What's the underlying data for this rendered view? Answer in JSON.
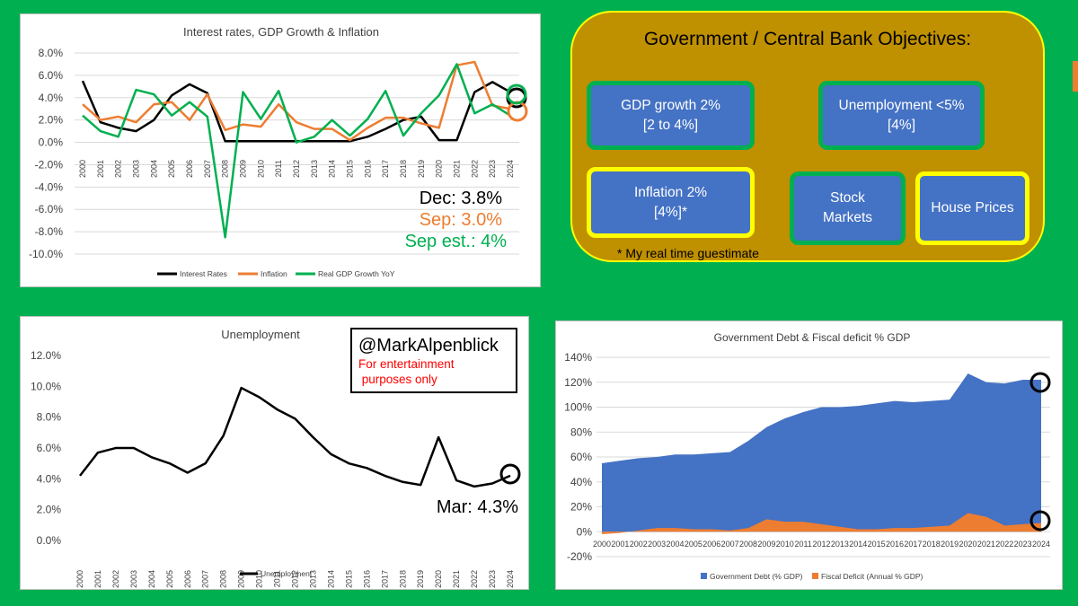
{
  "objectives": {
    "title": "Government / Central Bank Objectives:",
    "gdp": {
      "line1": "GDP  growth 2%",
      "line2": "[2 to 4%]"
    },
    "unemployment": {
      "line1": "Unemployment <5%",
      "line2": "[4%]"
    },
    "inflation": {
      "line1": "Inflation 2%",
      "line2": "[4%]*"
    },
    "stock": {
      "line1": "Stock",
      "line2": "Markets"
    },
    "house": {
      "line1": "House Prices"
    },
    "note": "* My real time guestimate"
  },
  "colors": {
    "background": "#00b050",
    "black": "#000000",
    "orange": "#ed7d31",
    "green": "#00b050",
    "blue": "#4472c4",
    "gold": "#bf9000",
    "yellow": "#ffff00",
    "red": "#ff0000"
  },
  "chart_data": [
    {
      "type": "line",
      "title": "Interest rates, GDP Growth & Inflation",
      "x": [
        "2000",
        "2001",
        "2002",
        "2003",
        "2004",
        "2005",
        "2006",
        "2007",
        "2008",
        "2009",
        "2010",
        "2011",
        "2012",
        "2013",
        "2014",
        "2015",
        "2016",
        "2017",
        "2018",
        "2019",
        "2020",
        "2021",
        "2022",
        "2023",
        "2024"
      ],
      "ylim": [
        -10,
        8
      ],
      "ticks": [
        "8.0%",
        "6.0%",
        "4.0%",
        "2.0%",
        "0.0%",
        "-2.0%",
        "-4.0%",
        "-6.0%",
        "-8.0%",
        "-10.0%"
      ],
      "tick_values": [
        8,
        6,
        4,
        2,
        0,
        -2,
        -4,
        -6,
        -8,
        -10
      ],
      "series": [
        {
          "name": "Interest Rates",
          "color": "#000000",
          "values": [
            5.5,
            1.8,
            1.3,
            1.0,
            2.0,
            4.2,
            5.2,
            4.4,
            0.1,
            0.1,
            0.1,
            0.1,
            0.1,
            0.1,
            0.1,
            0.1,
            0.5,
            1.2,
            2.0,
            2.3,
            0.2,
            0.2,
            4.5,
            5.4,
            4.5
          ]
        },
        {
          "name": "Inflation",
          "color": "#ed7d31",
          "values": [
            3.4,
            2.0,
            2.3,
            1.8,
            3.4,
            3.6,
            2.0,
            4.3,
            1.1,
            1.6,
            1.4,
            3.4,
            1.8,
            1.2,
            1.2,
            0.2,
            1.3,
            2.2,
            2.2,
            1.7,
            1.3,
            6.9,
            7.2,
            3.3,
            3.0
          ]
        },
        {
          "name": "Real GDP Growth YoY",
          "color": "#00b050",
          "values": [
            2.4,
            1.0,
            0.5,
            4.7,
            4.3,
            2.4,
            3.6,
            2.3,
            -8.5,
            4.5,
            2.1,
            4.6,
            0.0,
            0.5,
            2.0,
            0.6,
            2.1,
            4.6,
            0.6,
            2.6,
            4.2,
            7.0,
            2.6,
            3.4,
            2.4
          ]
        }
      ],
      "annotations": [
        {
          "text": "Dec: 3.8%",
          "color": "#000000"
        },
        {
          "text": "Sep: 3.0%",
          "color": "#ed7d31"
        },
        {
          "text": "Sep est.: 4%",
          "color": "#00b050"
        }
      ],
      "legend": "bottom"
    },
    {
      "type": "line",
      "title": "Unemployment",
      "x": [
        "2000",
        "2001",
        "2002",
        "2003",
        "2004",
        "2005",
        "2006",
        "2007",
        "2008",
        "2009",
        "2010",
        "2011",
        "2012",
        "2013",
        "2014",
        "2015",
        "2016",
        "2017",
        "2018",
        "2019",
        "2020",
        "2021",
        "2022",
        "2023",
        "2024"
      ],
      "ylim": [
        0,
        12
      ],
      "ticks": [
        "12.0%",
        "10.0%",
        "8.0%",
        "6.0%",
        "4.0%",
        "2.0%",
        "0.0%"
      ],
      "tick_values": [
        12,
        10,
        8,
        6,
        4,
        2,
        0
      ],
      "series": [
        {
          "name": "Unemployment",
          "color": "#000000",
          "values": [
            4.2,
            5.7,
            6.0,
            6.0,
            5.4,
            5.0,
            4.4,
            5.0,
            6.8,
            9.9,
            9.3,
            8.5,
            7.9,
            6.7,
            5.6,
            5.0,
            4.7,
            4.2,
            3.8,
            3.6,
            6.7,
            3.9,
            3.5,
            3.7,
            4.2
          ]
        }
      ],
      "watermark": {
        "handle": "@MarkAlpenblick",
        "line1": "For entertainment",
        "line2": " purposes only"
      },
      "annotation": "Mar: 4.3%",
      "legend": "bottom"
    },
    {
      "type": "area",
      "title": "Government Debt & Fiscal deficit % GDP",
      "x": [
        "2000",
        "2001",
        "2002",
        "2003",
        "2004",
        "2005",
        "2006",
        "2007",
        "2008",
        "2009",
        "2010",
        "2011",
        "2012",
        "2013",
        "2014",
        "2015",
        "2016",
        "2017",
        "2018",
        "2019",
        "2020",
        "2021",
        "2022",
        "2023",
        "2024"
      ],
      "ylim": [
        -20,
        140
      ],
      "ticks": [
        "140%",
        "120%",
        "100%",
        "80%",
        "60%",
        "40%",
        "20%",
        "0%",
        "-20%"
      ],
      "tick_values": [
        140,
        120,
        100,
        80,
        60,
        40,
        20,
        0,
        -20
      ],
      "series": [
        {
          "name": "Government Debt (% GDP)",
          "color": "#4472c4",
          "values": [
            55,
            57,
            59,
            60,
            62,
            62,
            63,
            64,
            73,
            84,
            91,
            96,
            100,
            100,
            101,
            103,
            105,
            104,
            105,
            106,
            127,
            120,
            119,
            122,
            122
          ]
        },
        {
          "name": "Fiscal Deficit (Annual % GDP)",
          "color": "#ed7d31",
          "values": [
            -2,
            -1,
            1,
            3,
            3,
            2,
            2,
            1,
            3,
            10,
            8,
            8,
            6,
            4,
            2,
            2,
            3,
            3,
            4,
            5,
            15,
            12,
            5,
            6,
            7
          ]
        }
      ],
      "legend": "bottom"
    }
  ]
}
